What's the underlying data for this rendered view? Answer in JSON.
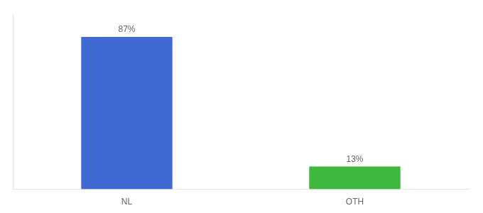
{
  "chart_data": {
    "type": "bar",
    "categories": [
      "NL",
      "OTH"
    ],
    "values": [
      87,
      13
    ],
    "colors": [
      "#4169d4",
      "#3cb83c"
    ],
    "value_labels": [
      "87%",
      "13%"
    ],
    "data_labels": true,
    "ylim": [
      0,
      100
    ],
    "tick_labels": "x",
    "grid": false
  }
}
